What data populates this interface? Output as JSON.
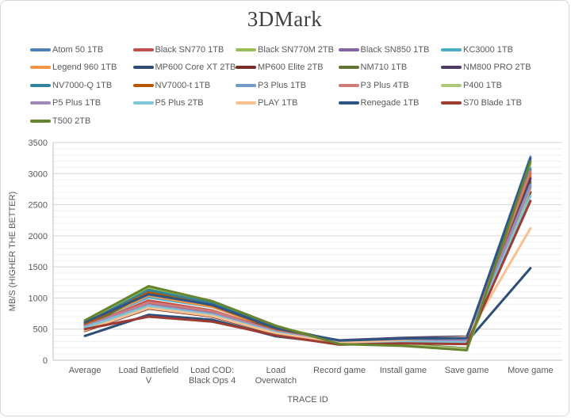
{
  "chart_data": {
    "type": "line",
    "title": "3DMark",
    "xlabel": "TRACE ID",
    "ylabel": "MB/S (HIGHER THE BETTER)",
    "ylim": [
      0,
      3500
    ],
    "ytick_step": 500,
    "yminor_step": 100,
    "grid": "major-and-minor-horizontal",
    "legend_position": "top",
    "categories": [
      "Average",
      "Load Battlefield V",
      "Load COD: Black Ops 4",
      "Load Overwatch",
      "Record game",
      "Install game",
      "Save game",
      "Move game"
    ],
    "category_label_lines": [
      [
        "Average"
      ],
      [
        "Load Battlefield",
        "V"
      ],
      [
        "Load COD:",
        "Black Ops 4"
      ],
      [
        "Load",
        "Overwatch"
      ],
      [
        "Record game"
      ],
      [
        "Install game"
      ],
      [
        "Save game"
      ],
      [
        "Move game"
      ]
    ],
    "series": [
      {
        "name": "Atom 50 1TB",
        "color": "#4F81BD",
        "values": [
          620,
          1080,
          900,
          520,
          310,
          340,
          350,
          3270
        ]
      },
      {
        "name": "Black SN770 1TB",
        "color": "#C0504D",
        "values": [
          545,
          960,
          800,
          470,
          290,
          310,
          300,
          2950
        ]
      },
      {
        "name": "Black SN770M 2TB",
        "color": "#9BBB59",
        "values": [
          600,
          1150,
          940,
          545,
          300,
          320,
          310,
          3160
        ]
      },
      {
        "name": "Black SN850 1TB",
        "color": "#8064A2",
        "values": [
          555,
          900,
          760,
          480,
          300,
          330,
          320,
          2880
        ]
      },
      {
        "name": "KC3000 1TB",
        "color": "#4BACC6",
        "values": [
          585,
          1010,
          855,
          505,
          310,
          340,
          330,
          3090
        ]
      },
      {
        "name": "Legend 960 1TB",
        "color": "#F79646",
        "values": [
          565,
          1040,
          860,
          490,
          300,
          320,
          335,
          2990
        ]
      },
      {
        "name": "MP600 Core XT 2TB",
        "color": "#2C4D75",
        "values": [
          390,
          730,
          650,
          385,
          265,
          285,
          295,
          1480
        ]
      },
      {
        "name": "MP600 Elite 2TB",
        "color": "#772C2A",
        "values": [
          470,
          830,
          700,
          420,
          270,
          290,
          280,
          2700
        ]
      },
      {
        "name": "NM710 1TB",
        "color": "#5F7530",
        "values": [
          520,
          1100,
          910,
          500,
          280,
          260,
          190,
          2850
        ]
      },
      {
        "name": "NM800 PRO 2TB",
        "color": "#4D3B62",
        "values": [
          560,
          910,
          770,
          490,
          320,
          360,
          380,
          2920
        ]
      },
      {
        "name": "NV7000-Q 1TB",
        "color": "#31849B",
        "values": [
          590,
          1130,
          920,
          510,
          300,
          310,
          300,
          3060
        ]
      },
      {
        "name": "NV7000-t 1TB",
        "color": "#B65708",
        "values": [
          575,
          1090,
          880,
          500,
          290,
          300,
          290,
          3010
        ]
      },
      {
        "name": "P3 Plus 1TB",
        "color": "#729ACA",
        "values": [
          530,
          880,
          740,
          450,
          280,
          300,
          310,
          2820
        ]
      },
      {
        "name": "P3 Plus 4TB",
        "color": "#CF7B79",
        "values": [
          550,
          930,
          790,
          465,
          285,
          305,
          315,
          3040
        ]
      },
      {
        "name": "P400 1TB",
        "color": "#AFC97A",
        "values": [
          510,
          860,
          720,
          440,
          270,
          250,
          180,
          2760
        ]
      },
      {
        "name": "P5 Plus 1TB",
        "color": "#9E8AB8",
        "values": [
          540,
          890,
          750,
          455,
          285,
          310,
          320,
          2790
        ]
      },
      {
        "name": "P5 Plus 2TB",
        "color": "#7DC6D6",
        "values": [
          525,
          870,
          730,
          445,
          275,
          295,
          285,
          2640
        ]
      },
      {
        "name": "PLAY 1TB",
        "color": "#FAC08F",
        "values": [
          480,
          840,
          710,
          430,
          280,
          330,
          370,
          2120
        ]
      },
      {
        "name": "Renegade 1TB",
        "color": "#2E5584",
        "values": [
          610,
          1060,
          890,
          515,
          315,
          345,
          355,
          3240
        ]
      },
      {
        "name": "S70 Blade 1TB",
        "color": "#9E3B33",
        "values": [
          500,
          700,
          620,
          400,
          250,
          270,
          260,
          2560
        ]
      },
      {
        "name": "T500 2TB",
        "color": "#66832F",
        "values": [
          640,
          1190,
          950,
          555,
          260,
          230,
          160,
          3200
        ]
      }
    ],
    "colors": {
      "title_text": "#3F3F3F",
      "axis_text": "#595959",
      "major_gridline": "#D6D6D6",
      "minor_gridline": "#F0F0F0",
      "axis_line": "#BFBFBF",
      "frame_border": "#D7D7D7",
      "background": "#FFFFFF"
    }
  }
}
